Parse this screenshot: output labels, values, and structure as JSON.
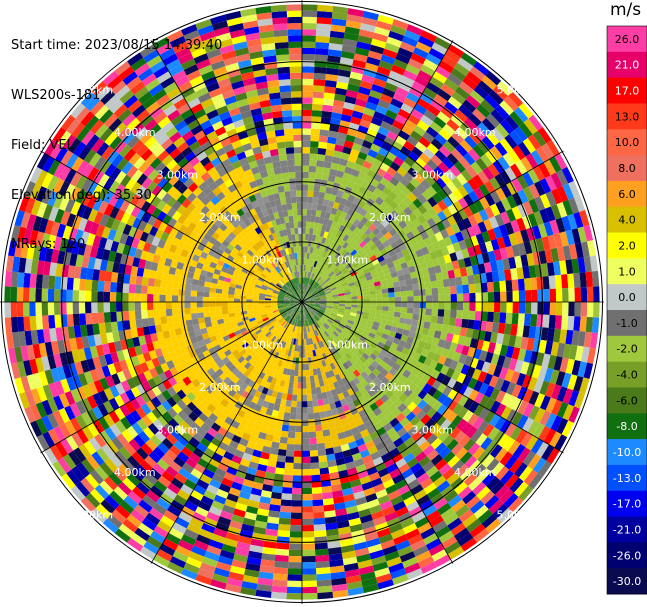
{
  "info": {
    "start_time": "Start time: 2023/08/15 14:39:40",
    "instrument": "WLS200s-181",
    "field": "Field: VEL",
    "elevation": "Elevation(deg): 35.30",
    "nrays": "NRays: 120"
  },
  "colorbar": {
    "unit": "m/s",
    "ticks": [
      "26.0",
      "21.0",
      "17.0",
      "13.0",
      "10.0",
      "8.0",
      "6.0",
      "4.0",
      "2.0",
      "1.0",
      "0.0",
      "-1.0",
      "-2.0",
      "-4.0",
      "-6.0",
      "-8.0",
      "-10.0",
      "-13.0",
      "-17.0",
      "-21.0",
      "-26.0",
      "-30.0"
    ],
    "colors": [
      "#ff3ea5",
      "#e8006a",
      "#ff0000",
      "#ff3a1a",
      "#ff6644",
      "#f07060",
      "#ffa020",
      "#d8c000",
      "#ffff00",
      "#f0ff60",
      "#c0c8c8",
      "#707070",
      "#a0c83c",
      "#78a028",
      "#4a7a1a",
      "#107010",
      "#1e8aff",
      "#0050ff",
      "#0000f0",
      "#0000a0",
      "#000070",
      "#0a0a50"
    ]
  },
  "chart_data": {
    "type": "ppi",
    "field": "VEL",
    "nrays": 120,
    "range_rings_labels": [
      "1.00km",
      "2.00km",
      "3.00km",
      "4.00km",
      "5.00km"
    ],
    "range_rings_km": [
      1,
      2,
      3,
      4,
      5
    ],
    "max_range_km": 5,
    "near_field": {
      "west_sector": "positive velocity (yellow/gold, ~2 to 4 m/s)",
      "east_sector": "negative velocity (light green, ~-1 to -2 m/s)",
      "core": "dark green / gray near 0 m/s",
      "noise_beyond_km": 2.5
    }
  }
}
